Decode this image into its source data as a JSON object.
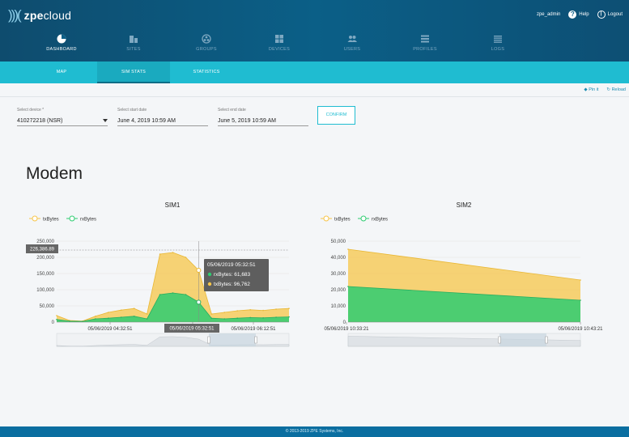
{
  "header": {
    "logo_bold": "zpe",
    "logo_light": "cloud",
    "user": "zpe_admin",
    "help": "Help",
    "logout": "Logout"
  },
  "nav": [
    {
      "label": "DASHBOARD",
      "icon": "pie-chart-icon",
      "active": true
    },
    {
      "label": "SITES",
      "icon": "building-icon",
      "active": false
    },
    {
      "label": "GROUPS",
      "icon": "groups-icon",
      "active": false
    },
    {
      "label": "DEVICES",
      "icon": "devices-icon",
      "active": false
    },
    {
      "label": "USERS",
      "icon": "users-icon",
      "active": false
    },
    {
      "label": "PROFILES",
      "icon": "profiles-icon",
      "active": false
    },
    {
      "label": "LOGS",
      "icon": "logs-icon",
      "active": false
    }
  ],
  "subtabs": [
    {
      "label": "MAP",
      "active": false
    },
    {
      "label": "SIM STATS",
      "active": true
    },
    {
      "label": "STATISTICS",
      "active": false
    }
  ],
  "actions": {
    "pin": "Pin it",
    "reload": "Reload"
  },
  "form": {
    "device_label": "Select device *",
    "device_value": "410272218 (NSR)",
    "start_label": "Select start date",
    "start_value": "June 4, 2019 10:59 AM",
    "end_label": "Select end date",
    "end_value": "June 5, 2019 10:59 AM",
    "confirm": "CONFIRM"
  },
  "section_title": "Modem",
  "colors": {
    "tx": "#f7c548",
    "rx": "#2ecc71",
    "accent": "#1fbcd1",
    "nav_bg": "#0b5f87"
  },
  "chart_data": [
    {
      "type": "area",
      "title": "SIM1",
      "legend": [
        "txBytes",
        "rxBytes"
      ],
      "ylim": [
        0,
        250000
      ],
      "yticks": [
        "250,000",
        "200,000",
        "150,000",
        "100,000",
        "50,000",
        "0"
      ],
      "xtick_labels": [
        "05/06/2019 04:32:51",
        "05/06/2019 05:32:51",
        "05/06/2019 06:12:51"
      ],
      "series": [
        {
          "name": "txBytes",
          "values": [
            20000,
            5000,
            3000,
            18000,
            30000,
            37000,
            42000,
            25000,
            210000,
            215000,
            200000,
            160000,
            25000,
            30000,
            35000,
            38000,
            36000,
            40000,
            42000
          ]
        },
        {
          "name": "rxBytes",
          "values": [
            8000,
            3000,
            2000,
            10000,
            12000,
            15000,
            18000,
            10000,
            85000,
            90000,
            85000,
            61683,
            12000,
            10000,
            12000,
            14000,
            13000,
            15000,
            16000
          ]
        }
      ],
      "crosshair_value": "226,386.89",
      "tooltip": {
        "time": "05/06/2019 05:32:51",
        "rx": "rxBytes: 61,683",
        "tx": "txBytes: 96,762"
      }
    },
    {
      "type": "area",
      "title": "SIM2",
      "legend": [
        "txBytes",
        "rxBytes"
      ],
      "ylim": [
        0,
        50000
      ],
      "yticks": [
        "50,000",
        "40,000",
        "30,000",
        "20,000",
        "10,000",
        "0"
      ],
      "xtick_labels": [
        "05/06/2019 10:33:21",
        "05/06/2019 10:43:21"
      ],
      "series": [
        {
          "name": "txBytes",
          "values": [
            45000,
            26000
          ]
        },
        {
          "name": "rxBytes",
          "values": [
            22000,
            13500
          ]
        }
      ]
    }
  ],
  "footer": "© 2013-2019 ZPE Systems, Inc."
}
